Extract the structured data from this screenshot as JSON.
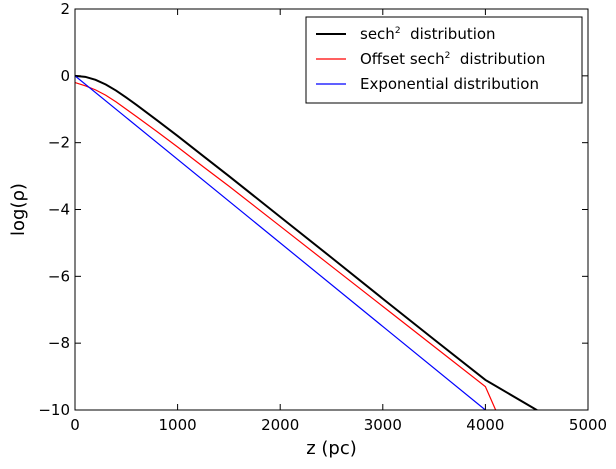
{
  "chart_data": {
    "type": "line",
    "xlabel": "z (pc)",
    "ylabel": "log(ρ)",
    "xlim": [
      0,
      5000
    ],
    "ylim": [
      -10,
      2
    ],
    "xticks": [
      0,
      1000,
      2000,
      3000,
      4000,
      5000
    ],
    "yticks": [
      2,
      0,
      -2,
      -4,
      -6,
      -8,
      -10
    ],
    "xtick_labels": [
      "0",
      "1000",
      "2000",
      "3000",
      "4000",
      "5000"
    ],
    "ytick_labels": [
      "2",
      "0",
      "−2",
      "−4",
      "−6",
      "−8",
      "−10"
    ],
    "grid": false,
    "legend_position": "top-right",
    "series": [
      {
        "name": "sech² distribution",
        "color": "#000000",
        "x": [
          0,
          100,
          200,
          300,
          400,
          500,
          600,
          800,
          1000,
          1250,
          1500,
          2000,
          2500,
          3000,
          3500,
          4000,
          4500,
          4530
        ],
        "y": [
          0,
          -0.03,
          -0.12,
          -0.26,
          -0.44,
          -0.65,
          -0.87,
          -1.33,
          -1.8,
          -2.4,
          -3.0,
          -4.22,
          -5.44,
          -6.67,
          -7.89,
          -9.1,
          -10.0,
          -10.05
        ]
      },
      {
        "name": "Offset sech² distribution",
        "color": "#ff0000",
        "x": [
          0,
          100,
          200,
          300,
          400,
          500,
          600,
          800,
          1000,
          1250,
          1500,
          2000,
          2500,
          3000,
          3500,
          4000,
          4100
        ],
        "y": [
          -0.2,
          -0.3,
          -0.42,
          -0.58,
          -0.78,
          -1.0,
          -1.22,
          -1.67,
          -2.13,
          -2.72,
          -3.3,
          -4.5,
          -5.7,
          -6.9,
          -8.1,
          -9.3,
          -10.0
        ]
      },
      {
        "name": "Exponential distribution",
        "color": "#0000ff",
        "x": [
          0,
          4000
        ],
        "y": [
          0,
          -10
        ]
      }
    ]
  },
  "legend": {
    "items": [
      {
        "prefix": "sech",
        "sup": "2",
        "suffix": "  distribution"
      },
      {
        "prefix": "Offset sech",
        "sup": "2",
        "suffix": "  distribution"
      },
      {
        "prefix": "Exponential distribution",
        "sup": "",
        "suffix": ""
      }
    ]
  }
}
